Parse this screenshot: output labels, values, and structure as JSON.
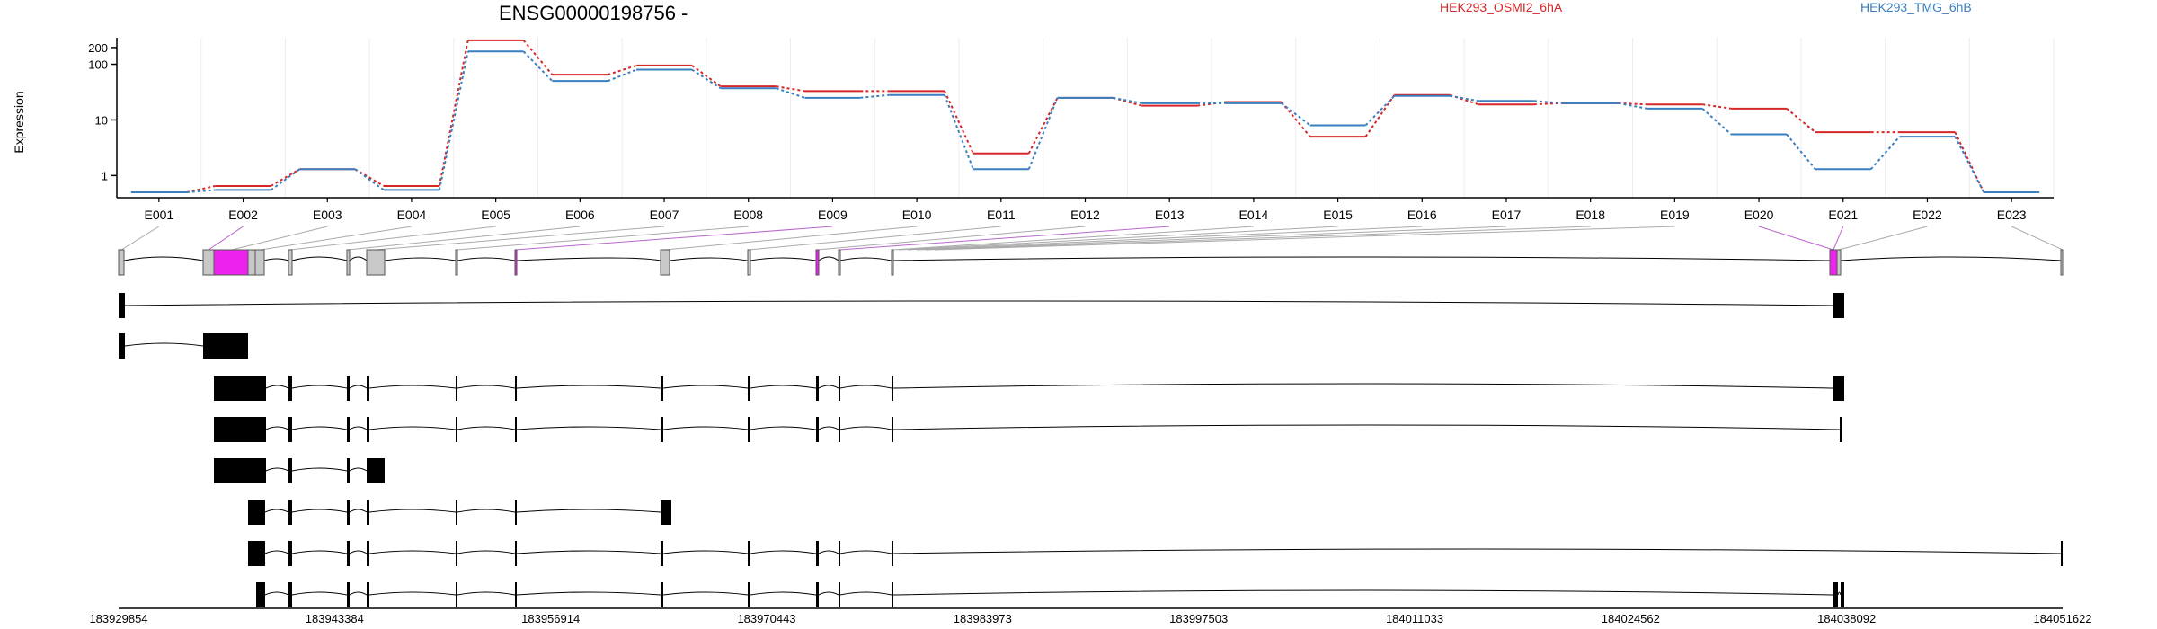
{
  "chart_data": {
    "type": "line",
    "title": "ENSG00000198756 -",
    "ylabel": "Expression",
    "yscale": "log",
    "yticks": [
      1,
      10,
      100,
      200
    ],
    "ylim": [
      0.4,
      300
    ],
    "grid": "vertical",
    "legend_position": "top-right",
    "exons": [
      "E001",
      "E002",
      "E003",
      "E004",
      "E005",
      "E006",
      "E007",
      "E008",
      "E009",
      "E010",
      "E011",
      "E012",
      "E013",
      "E014",
      "E015",
      "E016",
      "E017",
      "E018",
      "E019",
      "E020",
      "E021",
      "E022",
      "E023"
    ],
    "series": [
      {
        "name": "HEK293_OSMI2_6hA",
        "color": "#d62728",
        "values": [
          0.5,
          0.65,
          1.3,
          0.65,
          270,
          65,
          95,
          40,
          33,
          33,
          2.5,
          25,
          18,
          21,
          5,
          28,
          19,
          20,
          19,
          16,
          6,
          6,
          0.5
        ]
      },
      {
        "name": "HEK293_TMG_6hB",
        "color": "#3a7fbf",
        "values": [
          0.5,
          0.55,
          1.3,
          0.55,
          170,
          50,
          80,
          37,
          25,
          28,
          1.3,
          25,
          20,
          20,
          8,
          27,
          22,
          20,
          16,
          5.5,
          1.3,
          5,
          0.5
        ]
      }
    ],
    "genome_ticks": [
      "183929854",
      "183943384",
      "183956914",
      "183970443",
      "183983973",
      "183997503",
      "184011033",
      "184024562",
      "184038092",
      "184051622"
    ],
    "colors": {
      "highlight": "#ee22ee",
      "exon_box": "#c8c8c8",
      "transcript": "#000000",
      "connector": "#aaaaaa",
      "grid": "#eeeaf2"
    }
  }
}
